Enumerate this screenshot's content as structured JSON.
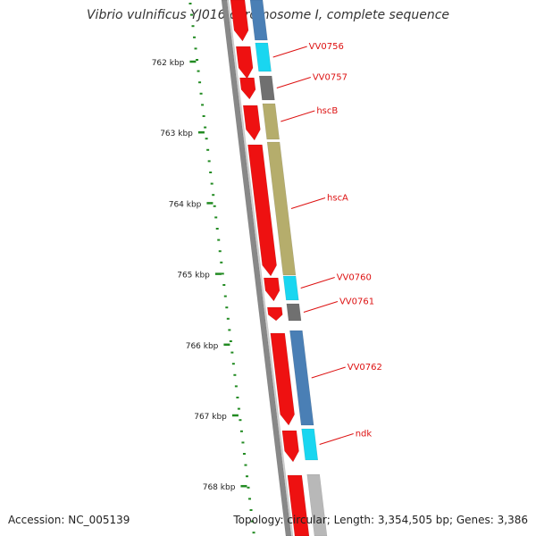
{
  "title": "Vibrio vulnificus YJ016 chromosome I, complete sequence",
  "footer": {
    "accession": "Accession: NC_005139",
    "topology": "Topology: circular; Length: 3,354,505 bp; Genes: 3,386"
  },
  "colors": {
    "forward_cds": "#ee1111",
    "gc_ticks": "#228B22",
    "backbone": "#888888",
    "label": "#dd1111",
    "blue_gene": "#4a7fb5",
    "cyan_gene": "#19d6f0",
    "gray_gene": "#707070",
    "olive_gene": "#b5ad6c",
    "light_gene": "#b8b8b8"
  },
  "kbp_ticks": [
    "762 kbp",
    "763 kbp",
    "764 kbp",
    "765 kbp",
    "766 kbp",
    "767 kbp",
    "768 kbp"
  ],
  "forward_genes": [
    {
      "from": 0,
      "to": 46
    },
    {
      "from": 52,
      "to": 88
    },
    {
      "from": 87,
      "to": 111
    },
    {
      "from": 118,
      "to": 157
    },
    {
      "from": 162,
      "to": 309
    },
    {
      "from": 311,
      "to": 337
    },
    {
      "from": 344,
      "to": 359
    },
    {
      "from": 373,
      "to": 476
    },
    {
      "from": 482,
      "to": 517
    },
    {
      "from": 532,
      "to": 600
    }
  ],
  "reverse_genes": [
    {
      "name": "",
      "from": 0,
      "to": 45,
      "color": "blue_gene"
    },
    {
      "name": "VV0756",
      "from": 48,
      "to": 80,
      "color": "cyan_gene"
    },
    {
      "name": "VV0757",
      "from": 85,
      "to": 112,
      "color": "gray_gene"
    },
    {
      "name": "hscB",
      "from": 116,
      "to": 156,
      "color": "olive_gene"
    },
    {
      "name": "hscA",
      "from": 159,
      "to": 308,
      "color": "olive_gene"
    },
    {
      "name": "VV0760",
      "from": 309,
      "to": 336,
      "color": "cyan_gene"
    },
    {
      "name": "VV0761",
      "from": 340,
      "to": 359,
      "color": "gray_gene"
    },
    {
      "name": "VV0762",
      "from": 370,
      "to": 476,
      "color": "blue_gene"
    },
    {
      "name": "ndk",
      "from": 480,
      "to": 515,
      "color": "cyan_gene"
    },
    {
      "name": "",
      "from": 531,
      "to": 600,
      "color": "light_gene"
    }
  ]
}
